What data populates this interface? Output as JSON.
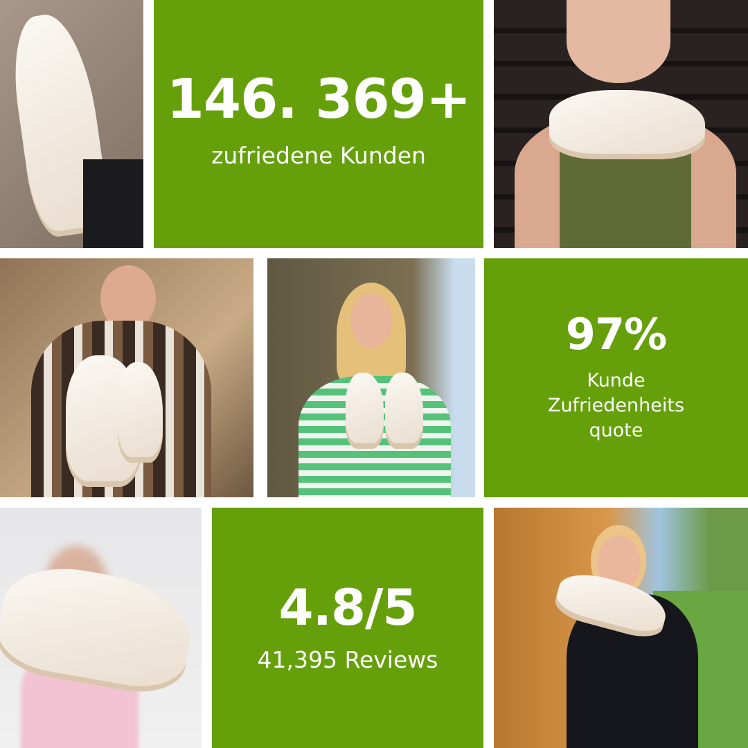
{
  "colors": {
    "accent_green": "#65a00b",
    "text": "#ffffff"
  },
  "stats": [
    {
      "value": "146. 369+",
      "label": "zufriedene Kunden"
    },
    {
      "value": "97%",
      "label_lines": [
        "Kunde",
        "Zufriedenheits",
        "quote"
      ]
    },
    {
      "value": "4.8/5",
      "label": "41,395 Reviews"
    }
  ]
}
